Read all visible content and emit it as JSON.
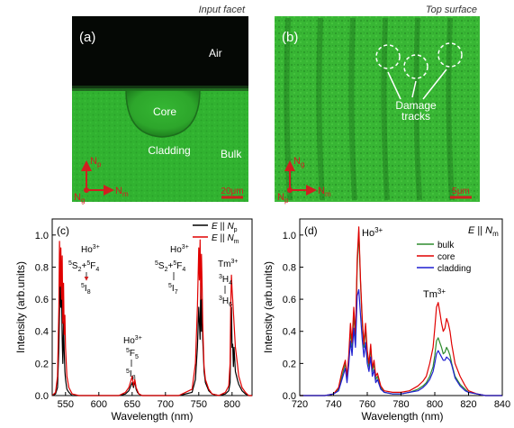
{
  "panel_a": {
    "caption": "Input facet",
    "panel_label": "(a)",
    "labels": {
      "air": "Air",
      "core": "Core",
      "cladding": "Cladding",
      "bulk": "Bulk"
    },
    "axes": {
      "vertical": "N",
      "vertical_sub": "p",
      "horizontal": "N",
      "horizontal_sub": "m",
      "origin": "N",
      "origin_sub": "g"
    },
    "scale_bar": "20μm"
  },
  "panel_b": {
    "caption": "Top surface",
    "panel_label": "(b)",
    "damage_label_line1": "Damage",
    "damage_label_line2": "tracks",
    "axes": {
      "vertical": "N",
      "vertical_sub": "g",
      "horizontal": "N",
      "horizontal_sub": "m",
      "origin": "N",
      "origin_sub": "p"
    },
    "scale_bar": "5μm"
  },
  "colors": {
    "black_line": "#000000",
    "red_line": "#e00000",
    "green_line": "#2e8b2e",
    "blue_line": "#1f1fd0",
    "fluor_green": "#2fb22f"
  },
  "chart_data": [
    {
      "type": "line",
      "panel_label": "(c)",
      "xlabel": "Wavelength (nm)",
      "ylabel": "Intensity (arb.units)",
      "xlim": [
        530,
        830
      ],
      "ylim": [
        0,
        1.1
      ],
      "xticks": [
        550,
        600,
        650,
        700,
        750,
        800
      ],
      "yticks": [
        0.0,
        0.2,
        0.4,
        0.6,
        0.8,
        1.0
      ],
      "ytick_labels": [
        "0.0",
        "0.2",
        "0.4",
        "0.6",
        "0.8",
        "1.0"
      ],
      "legend": [
        {
          "prefix": "E",
          "sep": " || ",
          "sym": "N",
          "sub": "p"
        },
        {
          "prefix": "E",
          "sep": " || ",
          "sym": "N",
          "sub": "m"
        }
      ],
      "annotations": {
        "ho1_ion": "Ho",
        "ho1_sup": "3+",
        "ho1_upper": "S",
        "ho1_upper_pre": "5",
        "ho1_upper_sub": "2",
        "ho1_plus": "+",
        "ho1_upper2": "F",
        "ho1_upper2_pre": "5",
        "ho1_upper2_sub": "4",
        "ho1_lower": "I",
        "ho1_lower_pre": "5",
        "ho1_lower_sub": "8",
        "ho2_ion": "Ho",
        "ho2_sup": "3+",
        "ho2_upper": "F",
        "ho2_upper_pre": "5",
        "ho2_upper_sub": "5",
        "ho2_lower": "I",
        "ho2_lower_pre": "5",
        "ho2_lower_sub": "8",
        "ho3_ion": "Ho",
        "ho3_sup": "3+",
        "ho3_upper": "S",
        "ho3_upper_pre": "5",
        "ho3_upper_sub": "2",
        "ho3_plus": "+",
        "ho3_upper2": "F",
        "ho3_upper2_pre": "5",
        "ho3_upper2_sub": "4",
        "ho3_lower": "I",
        "ho3_lower_pre": "5",
        "ho3_lower_sub": "7",
        "tm_ion": "Tm",
        "tm_sup": "3+",
        "tm_upper": "H",
        "tm_upper_pre": "3",
        "tm_upper_sub": "4",
        "tm_lower": "H",
        "tm_lower_pre": "3",
        "tm_lower_sub": "6"
      },
      "series": [
        {
          "name_key": 0,
          "color": "#000000",
          "x": [
            530,
            535,
            538,
            540,
            542,
            543,
            544,
            545,
            546,
            547,
            548,
            549,
            550,
            552,
            555,
            560,
            570,
            600,
            630,
            640,
            645,
            648,
            650,
            652,
            654,
            656,
            658,
            660,
            665,
            680,
            720,
            740,
            745,
            748,
            750,
            752,
            753,
            754,
            755,
            756,
            757,
            758,
            760,
            765,
            770,
            780,
            790,
            795,
            797,
            798,
            799,
            800,
            801,
            802,
            803,
            805,
            808,
            810,
            815,
            820,
            825,
            830
          ],
          "y": [
            0.0,
            0.01,
            0.05,
            0.3,
            0.78,
            0.55,
            0.62,
            0.35,
            0.2,
            0.46,
            0.28,
            0.15,
            0.1,
            0.04,
            0.02,
            0.0,
            0.0,
            0.0,
            0.0,
            0.01,
            0.03,
            0.06,
            0.08,
            0.05,
            0.09,
            0.04,
            0.02,
            0.01,
            0.0,
            0.0,
            0.0,
            0.02,
            0.1,
            0.3,
            0.55,
            0.35,
            0.7,
            0.4,
            0.6,
            0.35,
            0.25,
            0.15,
            0.08,
            0.03,
            0.01,
            0.0,
            0.01,
            0.03,
            0.08,
            0.35,
            0.55,
            0.3,
            0.32,
            0.18,
            0.3,
            0.15,
            0.1,
            0.07,
            0.03,
            0.01,
            0.0,
            0.0
          ]
        },
        {
          "name_key": 1,
          "color": "#e00000",
          "x": [
            530,
            535,
            538,
            540,
            541,
            542,
            543,
            544,
            545,
            546,
            547,
            548,
            549,
            550,
            552,
            555,
            560,
            570,
            600,
            630,
            640,
            645,
            648,
            650,
            652,
            654,
            656,
            658,
            660,
            665,
            680,
            720,
            740,
            745,
            748,
            750,
            751,
            752,
            753,
            754,
            755,
            756,
            757,
            758,
            760,
            765,
            770,
            780,
            790,
            795,
            797,
            798,
            799,
            800,
            801,
            802,
            803,
            805,
            808,
            810,
            815,
            820,
            825,
            830
          ],
          "y": [
            0.0,
            0.02,
            0.12,
            0.55,
            0.96,
            0.68,
            0.92,
            0.6,
            0.87,
            0.45,
            0.7,
            0.38,
            0.5,
            0.3,
            0.12,
            0.05,
            0.01,
            0.0,
            0.0,
            0.0,
            0.02,
            0.05,
            0.09,
            0.12,
            0.06,
            0.1,
            0.05,
            0.03,
            0.01,
            0.0,
            0.0,
            0.0,
            0.04,
            0.2,
            0.55,
            0.92,
            0.72,
            0.97,
            0.6,
            0.88,
            0.7,
            0.45,
            0.3,
            0.18,
            0.1,
            0.04,
            0.01,
            0.0,
            0.02,
            0.06,
            0.2,
            0.55,
            0.75,
            0.66,
            0.6,
            0.52,
            0.45,
            0.3,
            0.2,
            0.12,
            0.05,
            0.02,
            0.0,
            0.0
          ]
        }
      ]
    },
    {
      "type": "line",
      "panel_label": "(d)",
      "xlabel": "Wavelength (nm)",
      "ylabel": "Intensity (arb.units)",
      "xlim": [
        720,
        840
      ],
      "ylim": [
        0,
        1.1
      ],
      "xticks": [
        720,
        740,
        760,
        780,
        800,
        820,
        840
      ],
      "yticks": [
        0.0,
        0.2,
        0.4,
        0.6,
        0.8,
        1.0
      ],
      "ytick_labels": [
        "0.0",
        "0.2",
        "0.4",
        "0.6",
        "0.8",
        "1.0"
      ],
      "header": {
        "prefix": "E",
        "sep": " || ",
        "sym": "N",
        "sub": "m"
      },
      "annotations": {
        "ho_ion": "Ho",
        "ho_sup": "3+",
        "tm_ion": "Tm",
        "tm_sup": "3+"
      },
      "series": [
        {
          "name": "bulk",
          "color": "#2e8b2e",
          "x": [
            720,
            735,
            740,
            743,
            745,
            747,
            748,
            749,
            750,
            751,
            752,
            753,
            754,
            755,
            756,
            757,
            758,
            759,
            760,
            761,
            762,
            763,
            764,
            765,
            766,
            768,
            770,
            775,
            780,
            785,
            790,
            793,
            795,
            797,
            799,
            800,
            801,
            802,
            803,
            804,
            805,
            806,
            807,
            808,
            809,
            810,
            812,
            815,
            818,
            820,
            825,
            830,
            840
          ],
          "y": [
            0.0,
            0.0,
            0.01,
            0.04,
            0.12,
            0.2,
            0.1,
            0.22,
            0.4,
            0.3,
            0.5,
            0.35,
            0.8,
            1.02,
            0.7,
            0.45,
            0.3,
            0.42,
            0.25,
            0.18,
            0.3,
            0.15,
            0.2,
            0.1,
            0.12,
            0.05,
            0.02,
            0.01,
            0.01,
            0.02,
            0.04,
            0.06,
            0.08,
            0.12,
            0.18,
            0.25,
            0.34,
            0.36,
            0.33,
            0.3,
            0.26,
            0.27,
            0.3,
            0.28,
            0.25,
            0.2,
            0.12,
            0.07,
            0.04,
            0.02,
            0.01,
            0.0,
            0.0
          ]
        },
        {
          "name": "core",
          "color": "#e00000",
          "x": [
            720,
            735,
            740,
            743,
            745,
            747,
            748,
            749,
            750,
            751,
            752,
            753,
            754,
            755,
            756,
            757,
            758,
            759,
            760,
            761,
            762,
            763,
            764,
            765,
            766,
            768,
            770,
            775,
            780,
            785,
            790,
            793,
            795,
            797,
            799,
            800,
            801,
            802,
            803,
            804,
            805,
            806,
            807,
            808,
            809,
            810,
            812,
            815,
            818,
            820,
            825,
            830,
            840
          ],
          "y": [
            0.0,
            0.0,
            0.01,
            0.05,
            0.15,
            0.22,
            0.12,
            0.25,
            0.45,
            0.33,
            0.55,
            0.38,
            0.85,
            1.05,
            0.72,
            0.48,
            0.32,
            0.45,
            0.28,
            0.2,
            0.32,
            0.17,
            0.22,
            0.12,
            0.14,
            0.06,
            0.03,
            0.02,
            0.02,
            0.03,
            0.06,
            0.09,
            0.12,
            0.2,
            0.3,
            0.42,
            0.55,
            0.58,
            0.52,
            0.45,
            0.4,
            0.42,
            0.48,
            0.45,
            0.4,
            0.32,
            0.2,
            0.12,
            0.06,
            0.03,
            0.01,
            0.0,
            0.0
          ]
        },
        {
          "name": "cladding",
          "color": "#1f1fd0",
          "x": [
            720,
            735,
            740,
            743,
            745,
            747,
            748,
            749,
            750,
            751,
            752,
            753,
            754,
            755,
            756,
            757,
            758,
            759,
            760,
            761,
            762,
            763,
            764,
            765,
            766,
            768,
            770,
            775,
            780,
            785,
            790,
            793,
            795,
            797,
            799,
            800,
            801,
            802,
            803,
            804,
            805,
            806,
            807,
            808,
            809,
            810,
            812,
            815,
            818,
            820,
            825,
            830,
            840
          ],
          "y": [
            0.0,
            0.0,
            0.01,
            0.03,
            0.1,
            0.17,
            0.08,
            0.19,
            0.34,
            0.25,
            0.42,
            0.3,
            0.62,
            0.66,
            0.5,
            0.35,
            0.24,
            0.33,
            0.2,
            0.15,
            0.24,
            0.12,
            0.16,
            0.08,
            0.1,
            0.04,
            0.02,
            0.01,
            0.01,
            0.02,
            0.03,
            0.05,
            0.07,
            0.1,
            0.15,
            0.2,
            0.26,
            0.28,
            0.26,
            0.24,
            0.22,
            0.22,
            0.24,
            0.23,
            0.22,
            0.19,
            0.11,
            0.06,
            0.03,
            0.02,
            0.01,
            0.0,
            0.0
          ]
        }
      ]
    }
  ]
}
